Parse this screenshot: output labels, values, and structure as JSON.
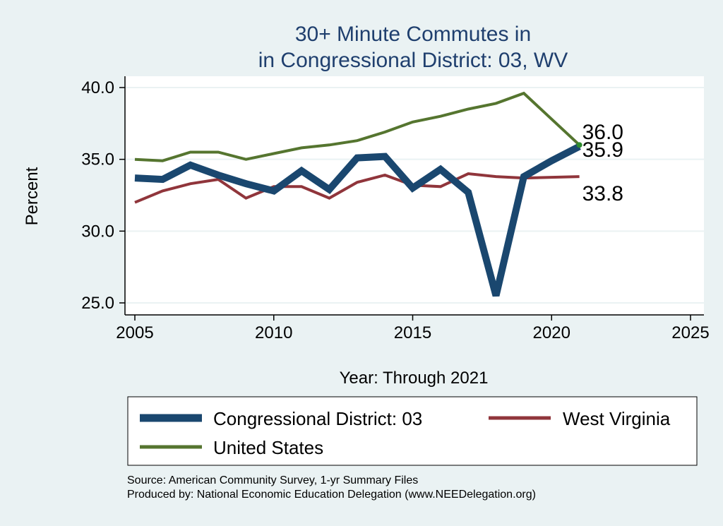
{
  "chart_data": {
    "type": "line",
    "title": [
      "30+ Minute Commutes in",
      "in Congressional District:  03, WV"
    ],
    "xlabel": "Year: Through 2021",
    "ylabel": "Percent",
    "xlim": [
      2005,
      2025
    ],
    "ylim": [
      25,
      40
    ],
    "xticks": [
      2005,
      2010,
      2015,
      2020,
      2025
    ],
    "yticks": [
      {
        "value": 25,
        "label": "25.0"
      },
      {
        "value": 30,
        "label": "30.0"
      },
      {
        "value": 35,
        "label": "35.0"
      },
      {
        "value": 40,
        "label": "40.0"
      }
    ],
    "grid": true,
    "legend_position": "bottom",
    "x": [
      2005,
      2006,
      2007,
      2008,
      2009,
      2010,
      2011,
      2012,
      2013,
      2014,
      2015,
      2016,
      2017,
      2018,
      2019,
      2020,
      2021
    ],
    "series": [
      {
        "name": "Congressional District:  03",
        "color": "#1a476f",
        "width": 10,
        "values": [
          33.7,
          33.6,
          34.6,
          33.9,
          33.3,
          32.8,
          34.2,
          32.9,
          35.1,
          35.2,
          33.0,
          34.3,
          32.7,
          25.5,
          33.8,
          34.9,
          35.9
        ],
        "end_label": "35.9"
      },
      {
        "name": "West Virginia",
        "color": "#90353b",
        "width": 4,
        "values": [
          32.0,
          32.8,
          33.3,
          33.6,
          32.3,
          33.1,
          33.1,
          32.3,
          33.4,
          33.9,
          33.2,
          33.1,
          34.0,
          33.8,
          33.7,
          33.75,
          33.8
        ],
        "end_label": "33.8"
      },
      {
        "name": "United States",
        "color": "#55752f",
        "width": 4,
        "values": [
          35.0,
          34.9,
          35.5,
          35.5,
          35.0,
          35.4,
          35.8,
          36.0,
          36.3,
          36.9,
          37.6,
          38.0,
          38.5,
          38.9,
          39.6,
          null,
          36.0
        ],
        "end_label": "36.0"
      }
    ]
  },
  "footer": {
    "source": "Source: American Community Survey, 1-yr Summary Files",
    "produced_by": "Produced by: National Economic Education Delegation (www.NEEDelegation.org)"
  }
}
